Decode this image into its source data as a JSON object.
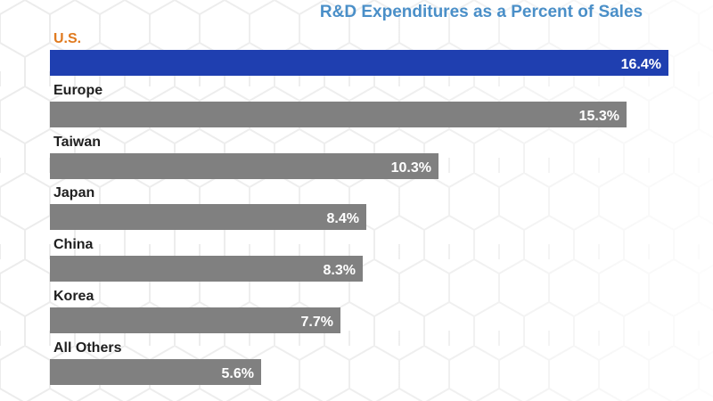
{
  "chart_data": {
    "type": "bar",
    "orientation": "horizontal",
    "title": "R&D Expenditures as a Percent of Sales",
    "categories": [
      "U.S.",
      "Europe",
      "Taiwan",
      "Japan",
      "China",
      "Korea",
      "All Others"
    ],
    "values": [
      16.4,
      15.3,
      10.3,
      8.4,
      8.3,
      7.7,
      5.6
    ],
    "value_labels": [
      "16.4%",
      "15.3%",
      "10.3%",
      "8.4%",
      "8.3%",
      "7.7%",
      "5.6%"
    ],
    "unit": "%",
    "xlabel": "",
    "ylabel": "",
    "xlim": [
      0,
      16.4
    ],
    "grid": false,
    "legend": "none",
    "highlight_index": 0
  },
  "colors": {
    "title": "#4a8fc8",
    "highlight_bar": "#1f3fb0",
    "bar": "#808080",
    "highlight_label": "#e07a1f",
    "label": "#1f1f1f",
    "value_text": "#ffffff"
  }
}
